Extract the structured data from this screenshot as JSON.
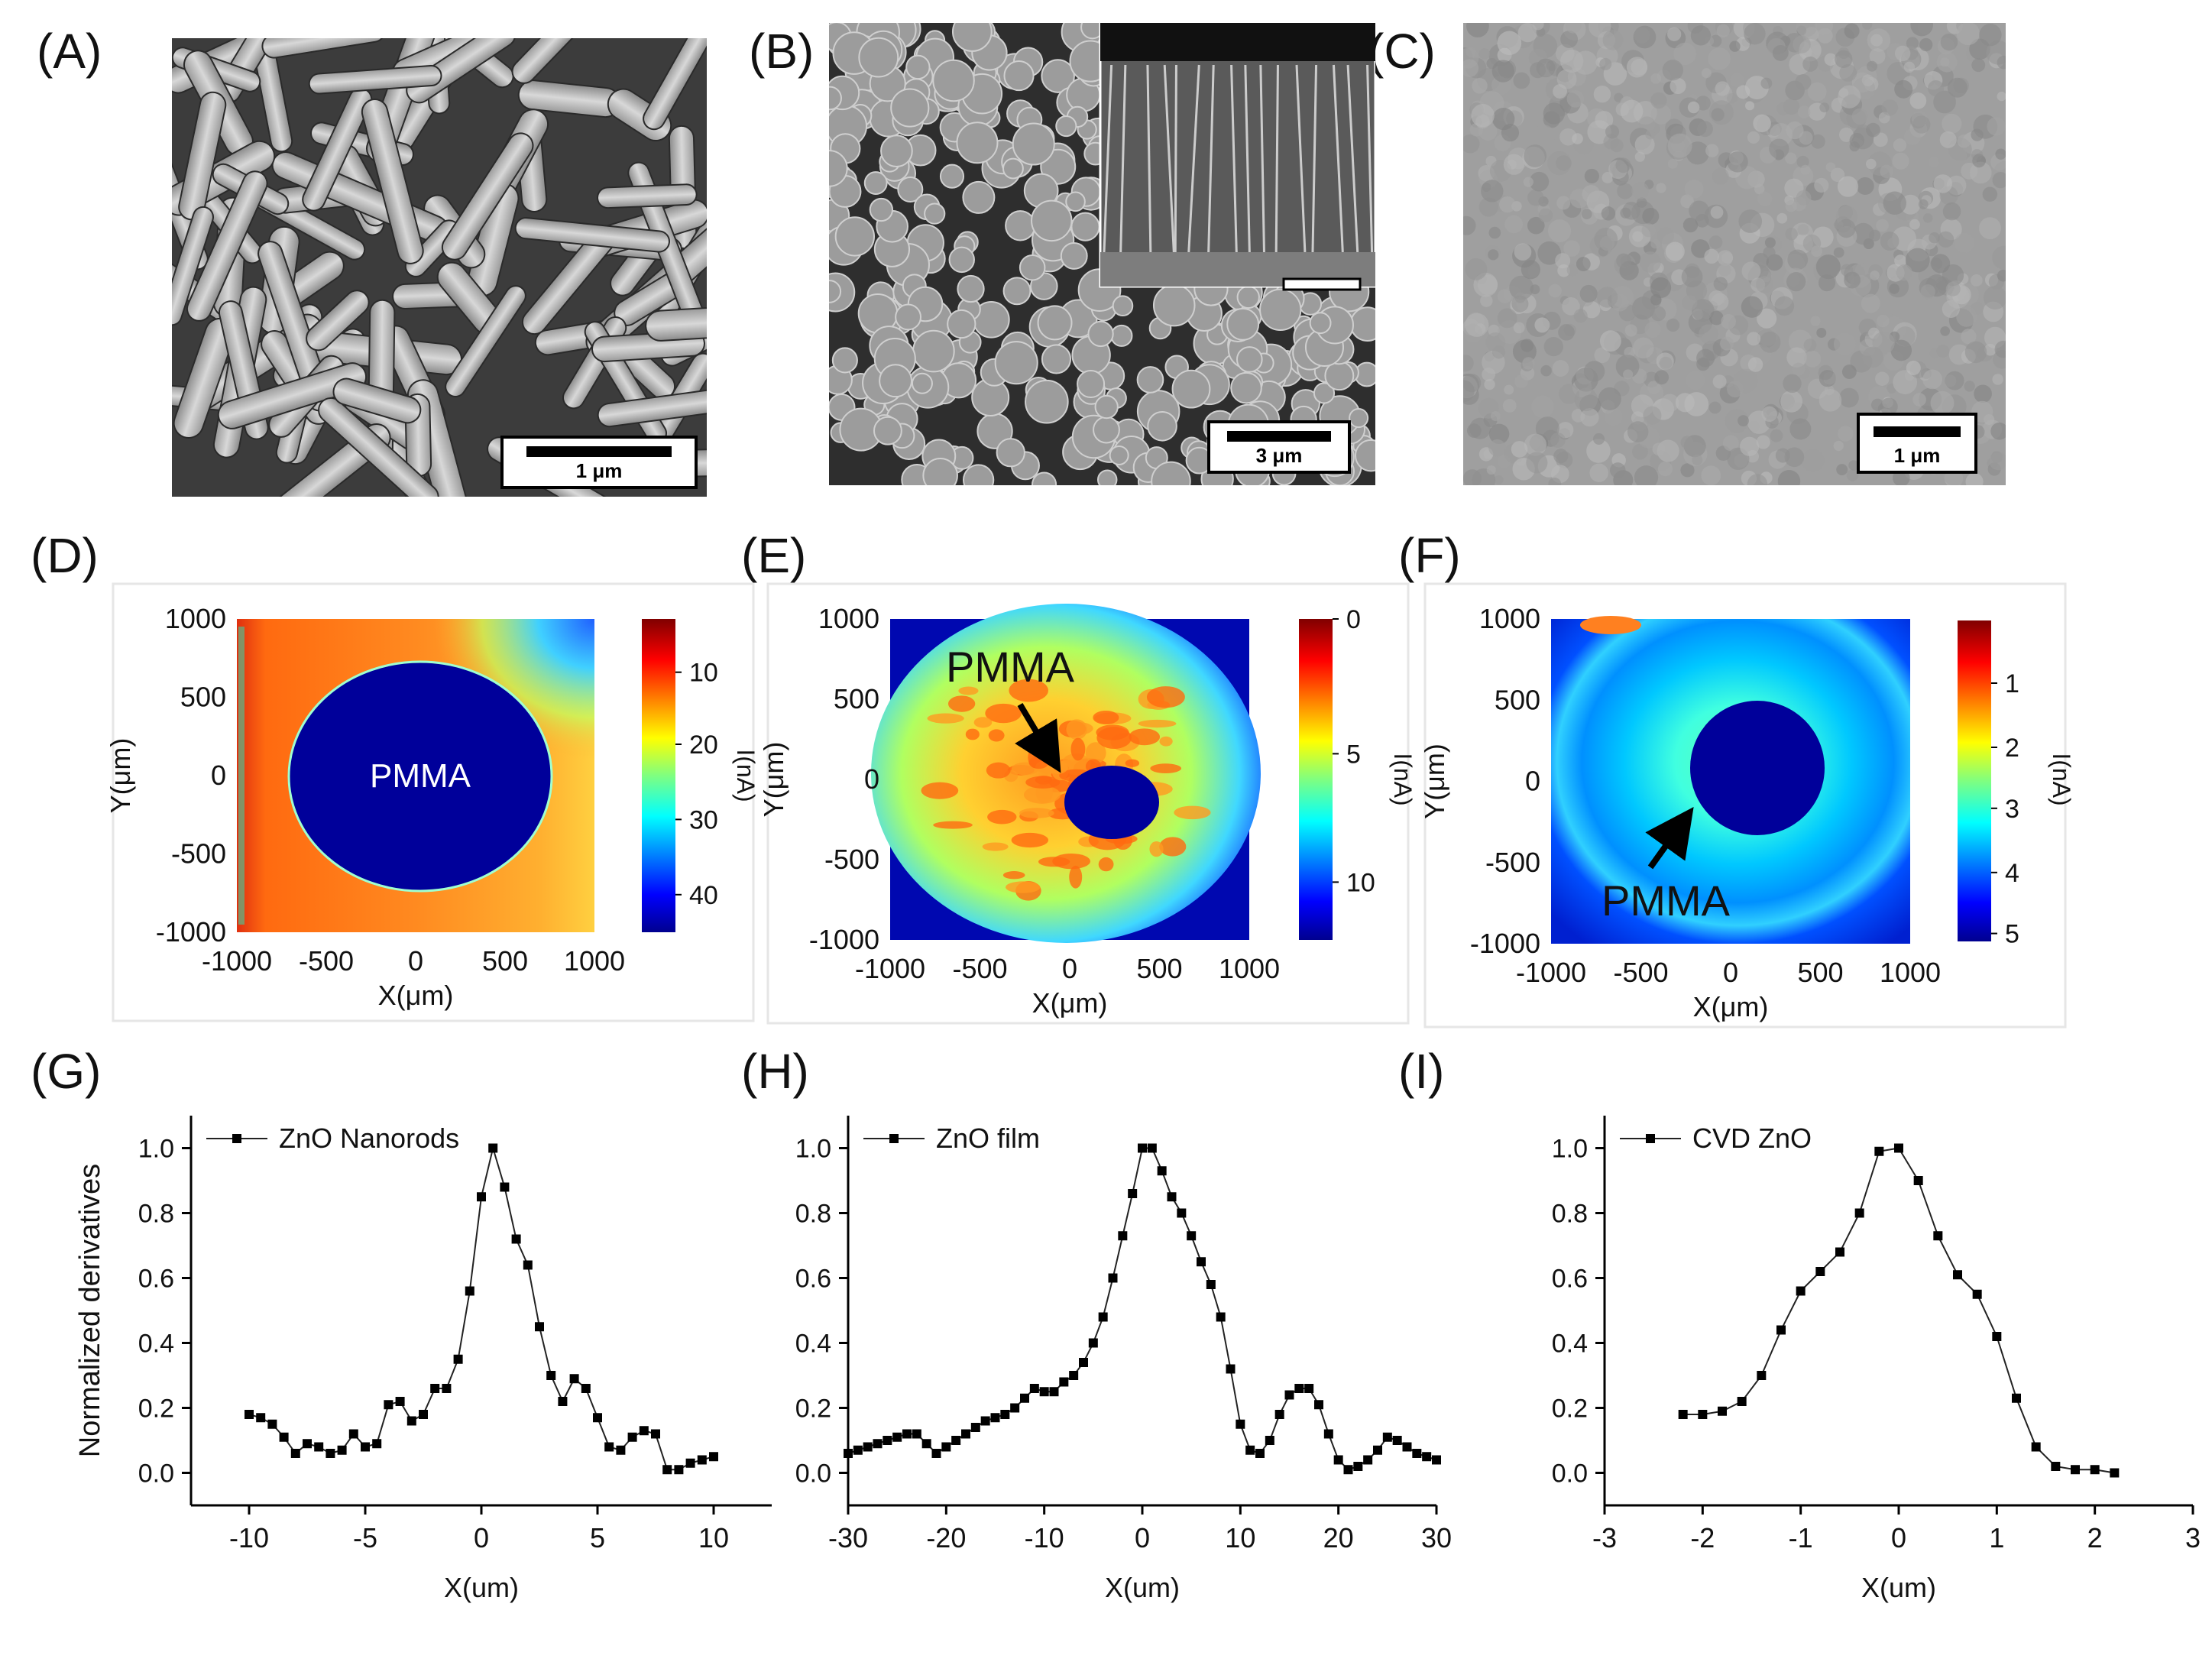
{
  "figure": {
    "panel_labels": [
      "(A)",
      "(B)",
      "(C)",
      "(D)",
      "(E)",
      "(F)",
      "(G)",
      "(H)",
      "(I)"
    ]
  },
  "sem": {
    "a_scale": "1 μm",
    "b_scale": "3 μm",
    "c_scale": "1 μm"
  },
  "maps": [
    {
      "ylabel": "Y(μm)",
      "xlabel": "X(μm)",
      "cbar_label": "I(nA)",
      "xticks": [
        "-1000",
        "-500",
        "0",
        "500",
        "1000"
      ],
      "yticks": [
        "1000",
        "500",
        "0",
        "-500",
        "-1000"
      ],
      "cbar_ticks": [
        "40",
        "30",
        "20",
        "10"
      ],
      "annotation": "PMMA"
    },
    {
      "ylabel": "Y(μm)",
      "xlabel": "X(μm)",
      "cbar_label": "I(nA)",
      "xticks": [
        "-1000",
        "-500",
        "0",
        "500",
        "1000"
      ],
      "yticks": [
        "1000",
        "500",
        "0",
        "-500",
        "-1000"
      ],
      "cbar_ticks": [
        "10",
        "5",
        "0"
      ],
      "annotation": "PMMA"
    },
    {
      "ylabel": "Y(μm)",
      "xlabel": "X(μm)",
      "cbar_label": "I(nA)",
      "xticks": [
        "-1000",
        "-500",
        "0",
        "500",
        "1000"
      ],
      "yticks": [
        "1000",
        "500",
        "0",
        "-500",
        "-1000"
      ],
      "cbar_ticks": [
        "5",
        "4",
        "3",
        "2",
        "1"
      ],
      "annotation": "PMMA"
    }
  ],
  "chart_data": [
    {
      "type": "line",
      "title": "",
      "legend": "ZnO Nanorods",
      "xlabel": "X(um)",
      "ylabel": "Normalized derivatives",
      "xlim": [
        -12.5,
        12.5
      ],
      "ylim": [
        -0.1,
        1.1
      ],
      "xticks": [
        -10,
        -5,
        0,
        5,
        10
      ],
      "yticks": [
        0.0,
        0.2,
        0.4,
        0.6,
        0.8,
        1.0
      ],
      "x": [
        -10,
        -9.5,
        -9,
        -8.5,
        -8,
        -7.5,
        -7,
        -6.5,
        -6,
        -5.5,
        -5,
        -4.5,
        -4,
        -3.5,
        -3,
        -2.5,
        -2,
        -1.5,
        -1,
        -0.5,
        0,
        0.5,
        1,
        1.5,
        2,
        2.5,
        3,
        3.5,
        4,
        4.5,
        5,
        5.5,
        6,
        6.5,
        7,
        7.5,
        8,
        8.5,
        9,
        9.5,
        10
      ],
      "y": [
        0.18,
        0.17,
        0.15,
        0.11,
        0.06,
        0.09,
        0.08,
        0.06,
        0.07,
        0.12,
        0.08,
        0.09,
        0.21,
        0.22,
        0.16,
        0.18,
        0.26,
        0.26,
        0.35,
        0.56,
        0.85,
        1.0,
        0.88,
        0.72,
        0.64,
        0.45,
        0.3,
        0.22,
        0.29,
        0.26,
        0.17,
        0.08,
        0.07,
        0.11,
        0.13,
        0.12,
        0.01,
        0.01,
        0.03,
        0.04,
        0.05
      ]
    },
    {
      "type": "line",
      "title": "",
      "legend": "ZnO film",
      "xlabel": "X(um)",
      "ylabel": "",
      "xlim": [
        -30,
        30
      ],
      "ylim": [
        -0.1,
        1.1
      ],
      "xticks": [
        -30,
        -20,
        -10,
        0,
        10,
        20,
        30
      ],
      "yticks": [
        0.0,
        0.2,
        0.4,
        0.6,
        0.8,
        1.0
      ],
      "x": [
        -30,
        -29,
        -28,
        -27,
        -26,
        -25,
        -24,
        -23,
        -22,
        -21,
        -20,
        -19,
        -18,
        -17,
        -16,
        -15,
        -14,
        -13,
        -12,
        -11,
        -10,
        -9,
        -8,
        -7,
        -6,
        -5,
        -4,
        -3,
        -2,
        -1,
        0,
        1,
        2,
        3,
        4,
        5,
        6,
        7,
        8,
        9,
        10,
        11,
        12,
        13,
        14,
        15,
        16,
        17,
        18,
        19,
        20,
        21,
        22,
        23,
        24,
        25,
        26,
        27,
        28,
        29,
        30
      ],
      "y": [
        0.06,
        0.07,
        0.08,
        0.09,
        0.1,
        0.11,
        0.12,
        0.12,
        0.09,
        0.06,
        0.08,
        0.1,
        0.12,
        0.14,
        0.16,
        0.17,
        0.18,
        0.2,
        0.23,
        0.26,
        0.25,
        0.25,
        0.28,
        0.3,
        0.34,
        0.4,
        0.48,
        0.6,
        0.73,
        0.86,
        1.0,
        1.0,
        0.93,
        0.85,
        0.8,
        0.73,
        0.65,
        0.58,
        0.48,
        0.32,
        0.15,
        0.07,
        0.06,
        0.1,
        0.18,
        0.24,
        0.26,
        0.26,
        0.21,
        0.12,
        0.04,
        0.01,
        0.02,
        0.04,
        0.07,
        0.11,
        0.1,
        0.08,
        0.06,
        0.05,
        0.04
      ]
    },
    {
      "type": "line",
      "title": "",
      "legend": "CVD ZnO",
      "xlabel": "X(um)",
      "ylabel": "",
      "xlim": [
        -3,
        3
      ],
      "ylim": [
        -0.1,
        1.1
      ],
      "xticks": [
        -3,
        -2,
        -1,
        0,
        1,
        2,
        3
      ],
      "yticks": [
        0.0,
        0.2,
        0.4,
        0.6,
        0.8,
        1.0
      ],
      "x": [
        -2.2,
        -2.0,
        -1.8,
        -1.6,
        -1.4,
        -1.2,
        -1.0,
        -0.8,
        -0.6,
        -0.4,
        -0.2,
        0.0,
        0.2,
        0.4,
        0.6,
        0.8,
        1.0,
        1.2,
        1.4,
        1.6,
        1.8,
        2.0,
        2.2
      ],
      "y": [
        0.18,
        0.18,
        0.19,
        0.22,
        0.3,
        0.44,
        0.56,
        0.62,
        0.68,
        0.8,
        0.99,
        1.0,
        0.9,
        0.73,
        0.61,
        0.55,
        0.42,
        0.23,
        0.08,
        0.02,
        0.01,
        0.01,
        0.0
      ]
    }
  ]
}
